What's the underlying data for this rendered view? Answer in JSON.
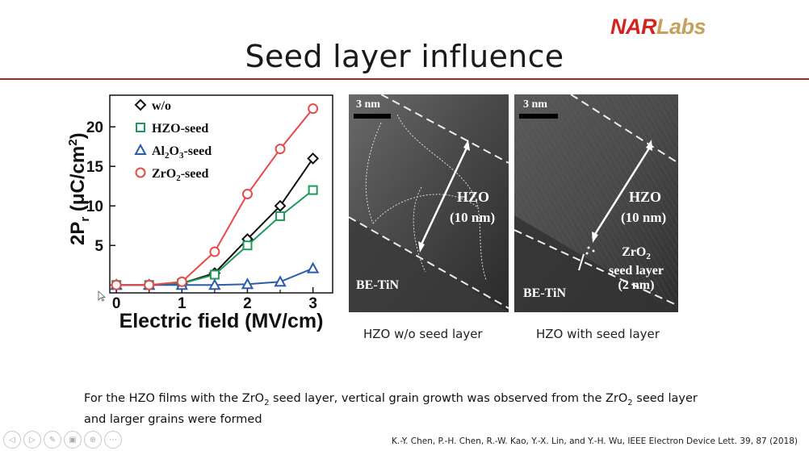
{
  "slide": {
    "title": "Seed layer influence"
  },
  "logo": {
    "part1": "NAR",
    "part2": "Labs"
  },
  "chart_data": {
    "type": "line",
    "ylabel": "2P",
    "ylabel_sub": "r",
    "ylabel_unit": " (μC/cm",
    "ylabel_sup": "2",
    "ylabel_end": ")",
    "xlabel": "Electric field (MV/cm)",
    "x": [
      0,
      0.5,
      1,
      1.5,
      2,
      2.5,
      3
    ],
    "xlim": [
      -0.1,
      3.3
    ],
    "ylim": [
      -1,
      24
    ],
    "xticks": [
      "0",
      "1",
      "2",
      "3"
    ],
    "yticks": [
      "5",
      "10",
      "15",
      "20"
    ],
    "legend_position": "top-left",
    "series": [
      {
        "name": "w/o",
        "name_sub": "",
        "name_tail": "",
        "marker": "diamond",
        "color": "#111111",
        "values": [
          0,
          0,
          0.2,
          1.5,
          5.8,
          10,
          16
        ]
      },
      {
        "name": "HZO-seed",
        "name_sub": "",
        "name_tail": "",
        "marker": "square",
        "color": "#1e9a5a",
        "values": [
          0,
          0,
          0.2,
          1.3,
          5,
          8.7,
          12
        ]
      },
      {
        "name": "Al",
        "name_sub": "2",
        "name_mid": "O",
        "name_sub2": "3",
        "name_tail": "-seed",
        "marker": "triangle",
        "color": "#2a5caa",
        "values": [
          0,
          0,
          0,
          0,
          0.1,
          0.4,
          2.1
        ]
      },
      {
        "name": "ZrO",
        "name_sub": "2",
        "name_tail": "-seed",
        "marker": "circle",
        "color": "#e84a4a",
        "values": [
          0,
          0,
          0.4,
          4.2,
          11.5,
          17.2,
          22.3
        ]
      }
    ]
  },
  "tem_left": {
    "scale": "3 nm",
    "layer": "HZO",
    "thickness": "(10 nm)",
    "substrate": "BE-TiN",
    "caption": "HZO w/o seed layer"
  },
  "tem_right": {
    "scale": "3 nm",
    "layer": "HZO",
    "thickness": "(10 nm)",
    "seed_name": "ZrO",
    "seed_sub": "2",
    "seed_line2": "seed layer",
    "seed_line3": "(2 nm)",
    "substrate": "BE-TiN",
    "caption": "HZO with seed layer"
  },
  "body": {
    "p1": "For the HZO films with the ZrO",
    "sub1": "2",
    "p2": " seed layer, vertical grain growth was observed from the ZrO",
    "sub2": "2",
    "p3": " seed layer and larger grains were formed"
  },
  "citation": "K.-Y. Chen, P.-H. Chen, R.-W. Kao, Y.-X. Lin, and Y.-H. Wu, IEEE Electron Device Lett. 39, 87 (2018)",
  "toolbar": {
    "items": [
      {
        "name": "prev-slide-icon",
        "glyph": "◁"
      },
      {
        "name": "next-slide-icon",
        "glyph": "▷"
      },
      {
        "name": "pen-icon",
        "glyph": "✎"
      },
      {
        "name": "slides-icon",
        "glyph": "▣"
      },
      {
        "name": "zoom-icon",
        "glyph": "⊕"
      },
      {
        "name": "more-icon",
        "glyph": "⋯"
      }
    ]
  }
}
